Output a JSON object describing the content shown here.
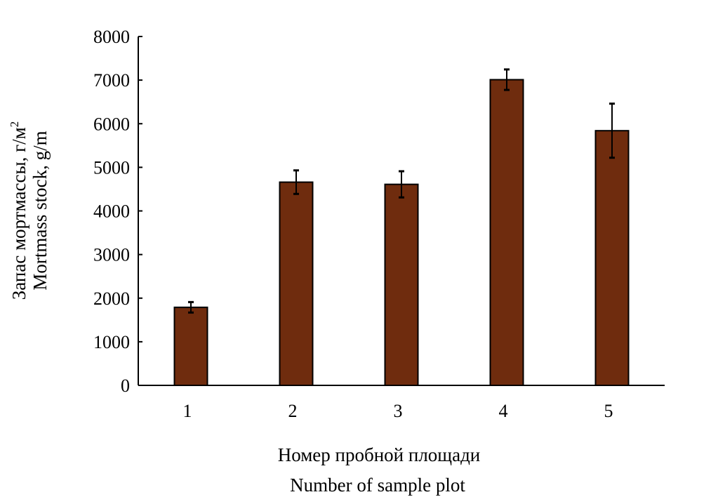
{
  "chart_data": {
    "type": "bar",
    "categories": [
      "1",
      "2",
      "3",
      "4",
      "5"
    ],
    "values": [
      1790,
      4660,
      4610,
      7010,
      5840
    ],
    "errors": [
      120,
      270,
      300,
      235,
      620
    ],
    "ylim": [
      0,
      8000
    ],
    "yticks": [
      0,
      1000,
      2000,
      3000,
      4000,
      5000,
      6000,
      7000,
      8000
    ],
    "ylabel_line1": "Запас мортмассы, г/м",
    "ylabel_line1_sup": "2",
    "ylabel_line2": "Mortmass stock, g/m",
    "xlabel_line1": "Номер пробной площади",
    "xlabel_line2": "Number of sample plot",
    "grid": false,
    "bar_color": "#6f2c0e",
    "edge_color": "#000000"
  }
}
